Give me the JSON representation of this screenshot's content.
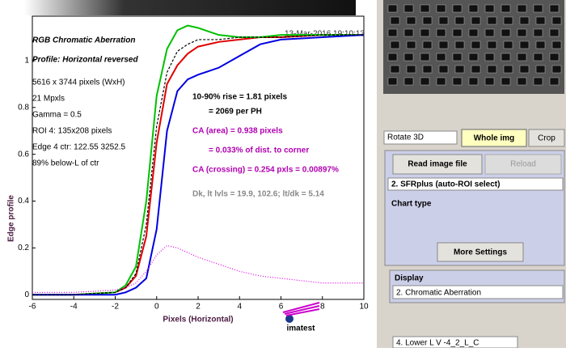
{
  "chart_data": {
    "type": "line",
    "title": "RGB Chromatic Aberration",
    "subtitle": "Profile: Horizontal reversed",
    "x_label": "Pixels (Horizontal)",
    "y_label": "Edge profile",
    "timestamp": "13-Mar-2016 19:10:13",
    "info": [
      "5616 x 3744 pixels (WxH)",
      "21 Mpxls",
      "Gamma = 0.5",
      "ROI 4: 135x208 pixels",
      "Edge 4 ctr: 122.55  3252.5",
      "89% below-L of ctr"
    ],
    "annotations": [
      {
        "text": "10-90% rise = 1.81 pixels",
        "color": "#000000"
      },
      {
        "text": "= 2069 per PH",
        "color": "#000000"
      },
      {
        "text": "CA (area) = 0.938 pixels",
        "color": "#b000b0"
      },
      {
        "text": "= 0.033% of dist. to corner",
        "color": "#b000b0"
      },
      {
        "text": "CA (crossing) = 0.254 pxls = 0.00897%",
        "color": "#b000b0"
      },
      {
        "text": "Dk, lt lvls = 19.9, 102.6;  lt/dk = 5.14",
        "color": "#888888"
      }
    ],
    "logo": "imatest",
    "x": [
      -6,
      -4,
      -2,
      -1.5,
      -1,
      -0.5,
      0,
      0.5,
      1,
      1.5,
      2,
      3,
      4,
      5,
      6,
      8,
      10
    ],
    "series": [
      {
        "color": "#e00000",
        "dash": "solid",
        "values": [
          0,
          0,
          0.01,
          0.03,
          0.08,
          0.25,
          0.65,
          0.9,
          0.98,
          1.03,
          1.06,
          1.08,
          1.09,
          1.1,
          1.1,
          1.11,
          1.11
        ]
      },
      {
        "color": "#00c000",
        "dash": "solid",
        "values": [
          0,
          0,
          0.01,
          0.04,
          0.12,
          0.4,
          0.85,
          1.05,
          1.13,
          1.15,
          1.14,
          1.11,
          1.1,
          1.1,
          1.11,
          1.11,
          1.11
        ]
      },
      {
        "color": "#0000e0",
        "dash": "solid",
        "values": [
          0,
          0,
          0,
          0.01,
          0.03,
          0.07,
          0.28,
          0.7,
          0.87,
          0.92,
          0.94,
          0.97,
          1.02,
          1.07,
          1.09,
          1.1,
          1.11
        ]
      },
      {
        "color": "#000000",
        "dash": "dashed",
        "values": [
          0,
          0,
          0.01,
          0.03,
          0.09,
          0.3,
          0.72,
          0.95,
          1.04,
          1.07,
          1.09,
          1.09,
          1.1,
          1.1,
          1.1,
          1.11,
          1.11
        ]
      },
      {
        "color": "#e000e0",
        "dash": "dotted",
        "values": [
          0.01,
          0.01,
          0.02,
          0.03,
          0.05,
          0.1,
          0.17,
          0.21,
          0.2,
          0.18,
          0.16,
          0.13,
          0.1,
          0.08,
          0.07,
          0.05,
          0.05
        ]
      }
    ],
    "xlim": [
      -6,
      10
    ],
    "xticks": [
      -6,
      -4,
      -2,
      0,
      2,
      4,
      6,
      8,
      10
    ],
    "ylim": [
      -0.02,
      1.19
    ],
    "yticks": [
      0,
      0.2,
      0.4,
      0.6,
      0.8,
      1
    ],
    "grid": false
  },
  "panel": {
    "rotate_select": "Rotate 3D",
    "whole_img_button": "Whole img",
    "crop_button": "Crop",
    "read_button": "Read image file",
    "reload_button": "Reload",
    "mode_select": "2. SFRplus (auto-ROI select)",
    "chart_type_label": "Chart type",
    "more_settings_button": "More Settings",
    "display_label": "Display",
    "display_select": "2.  Chromatic Aberration",
    "roi_select": "4. Lower L V   -4_2_L_C"
  }
}
